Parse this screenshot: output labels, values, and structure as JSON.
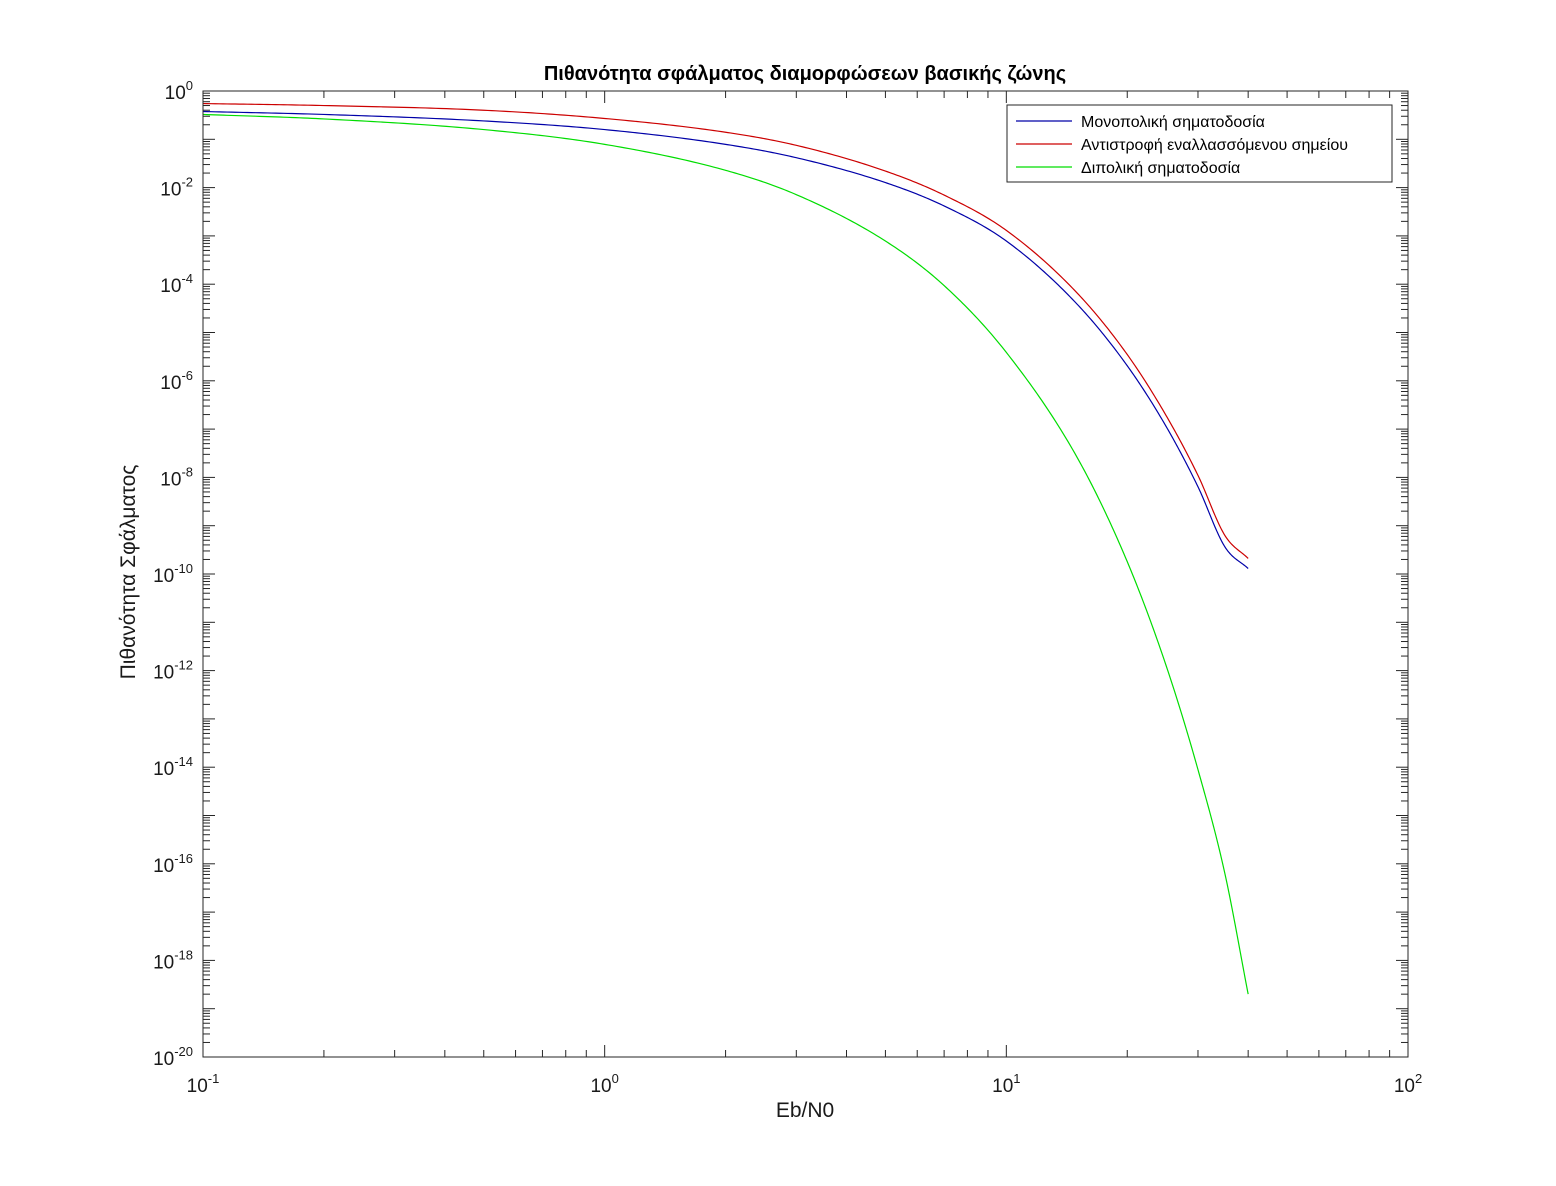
{
  "chart_data": {
    "type": "line",
    "title": "Πιθανότητα σφάλματος διαμορφώσεων βασικής ζώνης",
    "xlabel": "Eb/N0",
    "ylabel": "Πιθανότητα Σφάλματος",
    "xscale": "log",
    "yscale": "log",
    "xlim": [
      0.1,
      100
    ],
    "ylim": [
      1e-20,
      1
    ],
    "x_ticks": [
      {
        "base": "10",
        "exp": "-1",
        "value": 0.1
      },
      {
        "base": "10",
        "exp": "0",
        "value": 1
      },
      {
        "base": "10",
        "exp": "1",
        "value": 10
      },
      {
        "base": "10",
        "exp": "2",
        "value": 100
      }
    ],
    "y_ticks": [
      {
        "base": "10",
        "exp": "0",
        "value": 1
      },
      {
        "base": "10",
        "exp": "-2",
        "value": 0.01
      },
      {
        "base": "10",
        "exp": "-4",
        "value": 0.0001
      },
      {
        "base": "10",
        "exp": "-6",
        "value": 1e-06
      },
      {
        "base": "10",
        "exp": "-8",
        "value": 1e-08
      },
      {
        "base": "10",
        "exp": "-10",
        "value": 1e-10
      },
      {
        "base": "10",
        "exp": "-12",
        "value": 1e-12
      },
      {
        "base": "10",
        "exp": "-14",
        "value": 1e-14
      },
      {
        "base": "10",
        "exp": "-16",
        "value": 1e-16
      },
      {
        "base": "10",
        "exp": "-18",
        "value": 1e-18
      },
      {
        "base": "10",
        "exp": "-20",
        "value": 1e-20
      }
    ],
    "grid": false,
    "legend_position": "top-right",
    "series": [
      {
        "name": "Μονοπολική σηματοδοσία",
        "color": "#0000a8",
        "x": [
          0.1,
          0.2,
          0.5,
          1,
          2,
          3,
          5,
          7,
          10,
          15,
          20,
          25,
          30,
          35,
          40
        ],
        "y": [
          0.376,
          0.327,
          0.24,
          0.159,
          0.0786,
          0.0416,
          0.0127,
          0.00417,
          0.000783,
          3.87e-05,
          2.05e-06,
          1.13e-07,
          6.4e-09,
          3.66e-10,
          1.3e-10
        ]
      },
      {
        "name": "Αντιστροφή εναλλασσόμενου σημείου",
        "color": "#cc0000",
        "x": [
          0.1,
          0.2,
          0.5,
          1,
          2,
          3,
          5,
          7,
          10,
          15,
          20,
          25,
          30,
          35,
          40
        ],
        "y": [
          0.55,
          0.5,
          0.4,
          0.27,
          0.14,
          0.075,
          0.022,
          0.007,
          0.0013,
          6.6e-05,
          3.5e-06,
          1.9e-07,
          1.1e-08,
          6.3e-10,
          2.1e-10
        ]
      },
      {
        "name": "Διπολική σηματοδοσία",
        "color": "#00dd00",
        "x": [
          0.1,
          0.2,
          0.5,
          1,
          2,
          3,
          5,
          7,
          10,
          15,
          20,
          25,
          30,
          35,
          40
        ],
        "y": [
          0.327,
          0.264,
          0.159,
          0.0786,
          0.0228,
          0.00715,
          0.000783,
          9.36e-05,
          3.87e-06,
          2.61e-08,
          1.8e-10,
          1.26e-12,
          8.9e-15,
          6.3e-17,
          2e-19
        ]
      }
    ]
  }
}
